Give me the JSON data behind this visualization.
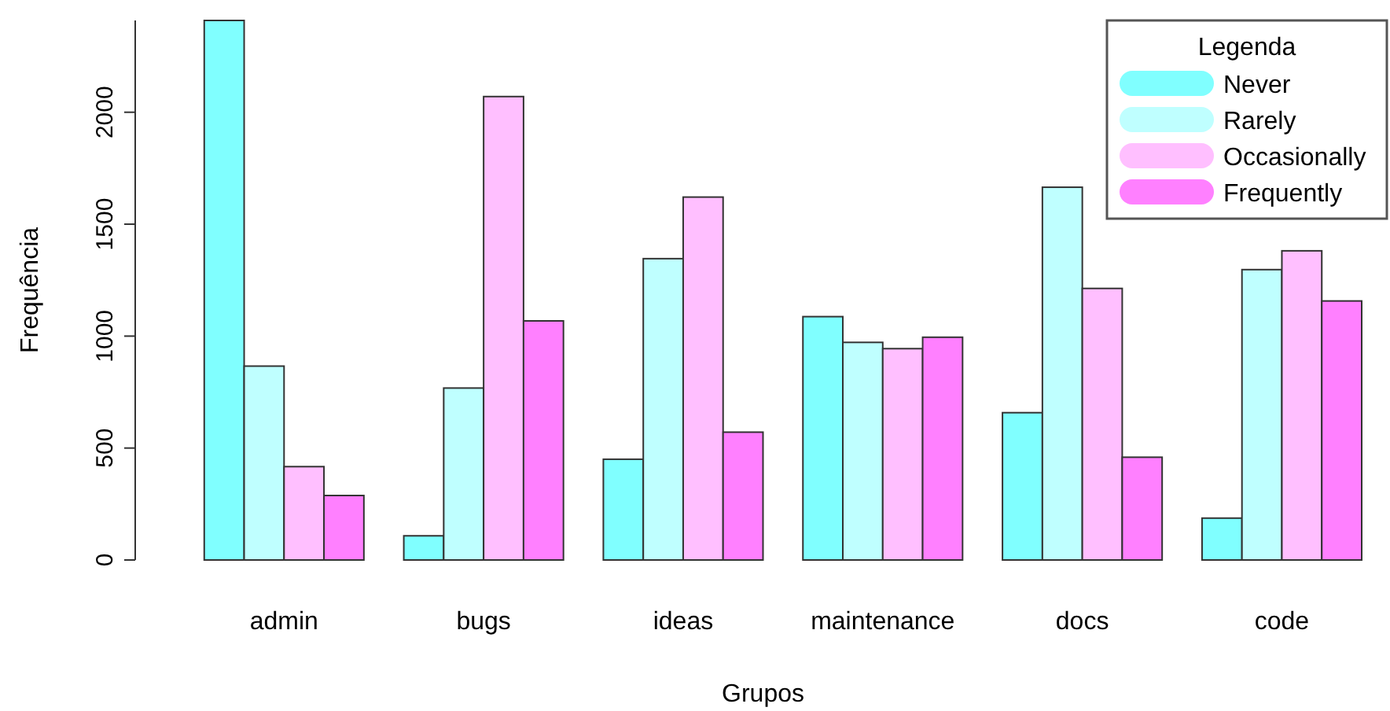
{
  "chart_data": {
    "type": "bar",
    "xlabel": "Grupos",
    "ylabel": "Frequência",
    "legend_title": "Legenda",
    "legend": "top right",
    "categories": [
      "admin",
      "bugs",
      "ideas",
      "maintenance",
      "docs",
      "code"
    ],
    "ylim": [
      0,
      2410
    ],
    "yticks": [
      0,
      500,
      1000,
      1500,
      2000
    ],
    "series": [
      {
        "name": "Never",
        "color": "#80ffff",
        "values": [
          2410,
          108,
          450,
          1087,
          658,
          187
        ]
      },
      {
        "name": "Rarely",
        "color": "#bfffff",
        "values": [
          866,
          768,
          1346,
          972,
          1665,
          1297
        ]
      },
      {
        "name": "Occasionally",
        "color": "#ffbfff",
        "values": [
          417,
          2070,
          1621,
          944,
          1213,
          1381
        ]
      },
      {
        "name": "Frequently",
        "color": "#ff80ff",
        "values": [
          288,
          1068,
          571,
          995,
          459,
          1157
        ]
      }
    ]
  }
}
